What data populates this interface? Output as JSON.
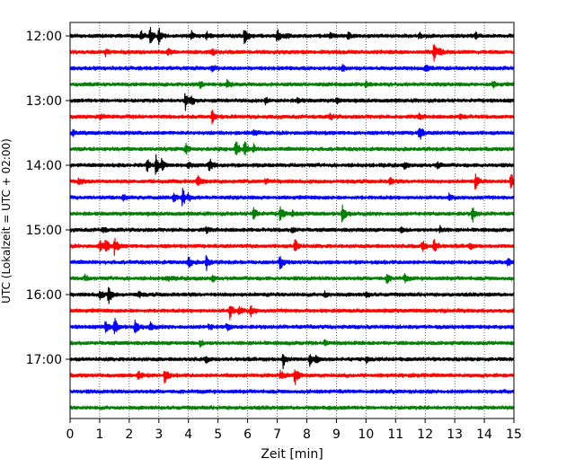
{
  "chart_data": {
    "type": "line",
    "title": "",
    "xlabel": "Zeit  [min]",
    "ylabel": "UTC (Lokalzeit = UTC + 02:00)",
    "xlim": [
      0,
      15
    ],
    "x_ticks": [
      0,
      1,
      2,
      3,
      4,
      5,
      6,
      7,
      8,
      9,
      10,
      11,
      12,
      13,
      14,
      15
    ],
    "x_tick_labels": [
      "0",
      "1",
      "2",
      "3",
      "4",
      "5",
      "6",
      "7",
      "8",
      "9",
      "10",
      "11",
      "12",
      "13",
      "14",
      "15"
    ],
    "y_tick_labels": [
      "12:00",
      "13:00",
      "14:00",
      "15:00",
      "16:00",
      "17:00"
    ],
    "y_tick_rows": [
      0,
      4,
      8,
      12,
      16,
      20
    ],
    "grid": "vertical dotted",
    "colors": [
      "#000000",
      "#ff0000",
      "#0000ff",
      "#008000"
    ],
    "rows": [
      {
        "start": "12:00",
        "color": "#000000",
        "events": [
          [
            2.4,
            0.5
          ],
          [
            2.7,
            0.9
          ],
          [
            3.0,
            0.8
          ],
          [
            4.1,
            0.4
          ],
          [
            4.6,
            0.5
          ],
          [
            5.9,
            1.0
          ],
          [
            7.0,
            0.8
          ],
          [
            7.3,
            0.4
          ],
          [
            8.8,
            0.3
          ],
          [
            9.4,
            0.4
          ],
          [
            11.8,
            0.3
          ],
          [
            13.7,
            0.3
          ]
        ]
      },
      {
        "start": "12:15",
        "color": "#ff0000",
        "events": [
          [
            1.2,
            0.3
          ],
          [
            3.3,
            0.3
          ],
          [
            4.8,
            0.3
          ],
          [
            12.3,
            1.0
          ],
          [
            12.5,
            0.5
          ]
        ]
      },
      {
        "start": "12:30",
        "color": "#0000ff",
        "events": [
          [
            4.8,
            0.3
          ],
          [
            9.2,
            0.3
          ],
          [
            12.0,
            0.4
          ]
        ]
      },
      {
        "start": "12:45",
        "color": "#008000",
        "events": [
          [
            4.4,
            0.3
          ],
          [
            5.3,
            0.5
          ],
          [
            10.0,
            0.3
          ],
          [
            14.3,
            0.3
          ]
        ]
      },
      {
        "start": "13:00",
        "color": "#000000",
        "events": [
          [
            3.9,
            1.0
          ],
          [
            4.1,
            0.4
          ],
          [
            6.6,
            0.3
          ],
          [
            7.7,
            0.3
          ],
          [
            9.0,
            0.3
          ]
        ]
      },
      {
        "start": "13:15",
        "color": "#ff0000",
        "events": [
          [
            1.0,
            0.3
          ],
          [
            4.8,
            0.7
          ],
          [
            8.8,
            0.3
          ],
          [
            11.8,
            0.3
          ],
          [
            13.2,
            0.3
          ]
        ]
      },
      {
        "start": "13:30",
        "color": "#0000ff",
        "events": [
          [
            0.1,
            0.3
          ],
          [
            6.2,
            0.3
          ],
          [
            11.8,
            0.9
          ]
        ]
      },
      {
        "start": "13:45",
        "color": "#008000",
        "events": [
          [
            3.9,
            0.6
          ],
          [
            5.6,
            0.9
          ],
          [
            5.9,
            0.9
          ],
          [
            6.2,
            0.4
          ]
        ]
      },
      {
        "start": "14:00",
        "color": "#000000",
        "events": [
          [
            2.6,
            0.6
          ],
          [
            2.9,
            1.0
          ],
          [
            3.1,
            0.6
          ],
          [
            4.0,
            0.5
          ],
          [
            4.7,
            0.8
          ],
          [
            11.3,
            0.3
          ],
          [
            12.4,
            0.4
          ]
        ]
      },
      {
        "start": "14:15",
        "color": "#ff0000",
        "events": [
          [
            0.3,
            0.4
          ],
          [
            4.3,
            0.8
          ],
          [
            6.6,
            0.3
          ],
          [
            10.8,
            0.4
          ],
          [
            13.7,
            0.8
          ],
          [
            14.9,
            0.9
          ]
        ]
      },
      {
        "start": "14:30",
        "color": "#0000ff",
        "events": [
          [
            1.8,
            0.3
          ],
          [
            3.5,
            0.4
          ],
          [
            3.8,
            0.9
          ],
          [
            4.0,
            0.3
          ],
          [
            12.8,
            0.3
          ]
        ]
      },
      {
        "start": "14:45",
        "color": "#008000",
        "events": [
          [
            6.2,
            0.8
          ],
          [
            7.1,
            0.8
          ],
          [
            7.5,
            0.3
          ],
          [
            9.2,
            1.0
          ],
          [
            13.6,
            0.8
          ]
        ]
      },
      {
        "start": "15:00",
        "color": "#000000",
        "events": [
          [
            1.1,
            0.3
          ],
          [
            4.6,
            0.3
          ],
          [
            7.5,
            0.3
          ],
          [
            11.2,
            0.3
          ],
          [
            12.5,
            0.3
          ]
        ]
      },
      {
        "start": "15:15",
        "color": "#ff0000",
        "events": [
          [
            1.0,
            0.6
          ],
          [
            1.2,
            0.8
          ],
          [
            1.5,
            0.9
          ],
          [
            7.6,
            0.8
          ],
          [
            11.9,
            0.6
          ],
          [
            12.3,
            0.8
          ],
          [
            13.5,
            0.3
          ]
        ]
      },
      {
        "start": "15:30",
        "color": "#0000ff",
        "events": [
          [
            4.0,
            0.7
          ],
          [
            4.6,
            0.8
          ],
          [
            7.1,
            0.8
          ],
          [
            14.8,
            0.4
          ]
        ]
      },
      {
        "start": "15:45",
        "color": "#008000",
        "events": [
          [
            0.5,
            0.3
          ],
          [
            3.3,
            0.3
          ],
          [
            4.8,
            0.3
          ],
          [
            10.7,
            0.5
          ],
          [
            11.3,
            0.4
          ]
        ]
      },
      {
        "start": "16:00",
        "color": "#000000",
        "events": [
          [
            1.0,
            0.5
          ],
          [
            1.3,
            1.0
          ],
          [
            2.3,
            0.3
          ],
          [
            8.6,
            0.3
          ],
          [
            10.0,
            0.3
          ]
        ]
      },
      {
        "start": "16:15",
        "color": "#ff0000",
        "events": [
          [
            5.4,
            0.9
          ],
          [
            5.7,
            0.5
          ],
          [
            6.1,
            0.6
          ]
        ]
      },
      {
        "start": "16:30",
        "color": "#0000ff",
        "events": [
          [
            1.2,
            0.6
          ],
          [
            1.5,
            0.9
          ],
          [
            2.2,
            0.8
          ],
          [
            2.7,
            0.5
          ],
          [
            4.7,
            0.3
          ],
          [
            5.3,
            0.4
          ]
        ]
      },
      {
        "start": "16:45",
        "color": "#008000",
        "events": [
          [
            4.4,
            0.3
          ],
          [
            8.6,
            0.3
          ]
        ]
      },
      {
        "start": "17:00",
        "color": "#000000",
        "events": [
          [
            4.6,
            0.3
          ],
          [
            7.2,
            0.8
          ],
          [
            8.1,
            0.6
          ],
          [
            8.3,
            0.3
          ],
          [
            10.0,
            0.3
          ]
        ]
      },
      {
        "start": "17:15",
        "color": "#ff0000",
        "events": [
          [
            2.3,
            0.5
          ],
          [
            3.2,
            0.8
          ],
          [
            7.1,
            0.5
          ],
          [
            7.6,
            1.0
          ]
        ]
      },
      {
        "start": "17:30",
        "color": "#0000ff",
        "events": []
      },
      {
        "start": "17:45",
        "color": "#008000",
        "events": []
      }
    ]
  }
}
